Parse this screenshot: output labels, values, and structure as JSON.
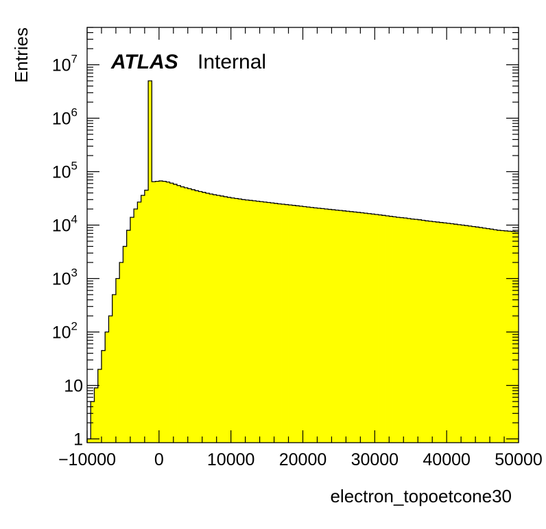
{
  "chart_data": {
    "type": "bar",
    "style": "histogram-step-filled",
    "fill_color": "#ffff00",
    "line_color": "#000000",
    "xlabel": "electron_topoetcone30",
    "ylabel": "Entries",
    "annotation": {
      "experiment": "ATLAS",
      "status": "Internal"
    },
    "xlim": [
      -10000,
      50000
    ],
    "ylim": [
      0.85,
      50000000
    ],
    "yscale": "log",
    "grid": false,
    "x_ticks": [
      {
        "value": -10000,
        "label": "−10000"
      },
      {
        "value": 0,
        "label": "0"
      },
      {
        "value": 10000,
        "label": "10000"
      },
      {
        "value": 20000,
        "label": "20000"
      },
      {
        "value": 30000,
        "label": "30000"
      },
      {
        "value": 40000,
        "label": "40000"
      },
      {
        "value": 50000,
        "label": "50000"
      }
    ],
    "y_ticks": [
      {
        "value": 1,
        "base": "1",
        "exp": ""
      },
      {
        "value": 10,
        "base": "10",
        "exp": ""
      },
      {
        "value": 100,
        "base": "10",
        "exp": "2"
      },
      {
        "value": 1000,
        "base": "10",
        "exp": "3"
      },
      {
        "value": 10000,
        "base": "10",
        "exp": "4"
      },
      {
        "value": 100000,
        "base": "10",
        "exp": "5"
      },
      {
        "value": 1000000,
        "base": "10",
        "exp": "6"
      },
      {
        "value": 10000000,
        "base": "10",
        "exp": "7"
      }
    ],
    "bin_edges_start": -10000,
    "bin_width": 500,
    "values": [
      1,
      5,
      9,
      20,
      45,
      100,
      200,
      500,
      1000,
      2000,
      4000,
      8000,
      14000,
      20000,
      27000,
      36000,
      45000,
      5000000,
      65000,
      66000,
      67000,
      66000,
      64000,
      61000,
      58000,
      55000,
      52000,
      50000,
      48000,
      46000,
      44000,
      42500,
      41000,
      39500,
      38200,
      37000,
      36000,
      35000,
      34000,
      33000,
      32200,
      31500,
      30800,
      30000,
      29500,
      29000,
      28500,
      28000,
      27500,
      27000,
      26500,
      26000,
      25500,
      25000,
      24600,
      24200,
      23800,
      23400,
      23000,
      22600,
      22200,
      21800,
      21400,
      21000,
      20700,
      20400,
      20000,
      19700,
      19400,
      19100,
      18800,
      18500,
      18200,
      17900,
      17600,
      17300,
      17000,
      16700,
      16400,
      16100,
      15800,
      15500,
      15200,
      14900,
      14600,
      14300,
      14000,
      13800,
      13600,
      13300,
      13000,
      12800,
      12600,
      12300,
      12000,
      11800,
      11600,
      11400,
      11200,
      11000,
      10800,
      10600,
      10400,
      10200,
      10000,
      9800,
      9600,
      9400,
      9200,
      9000,
      8800,
      8600,
      8400,
      8200,
      8000,
      7900,
      7800,
      7700,
      7600,
      7500
    ]
  }
}
